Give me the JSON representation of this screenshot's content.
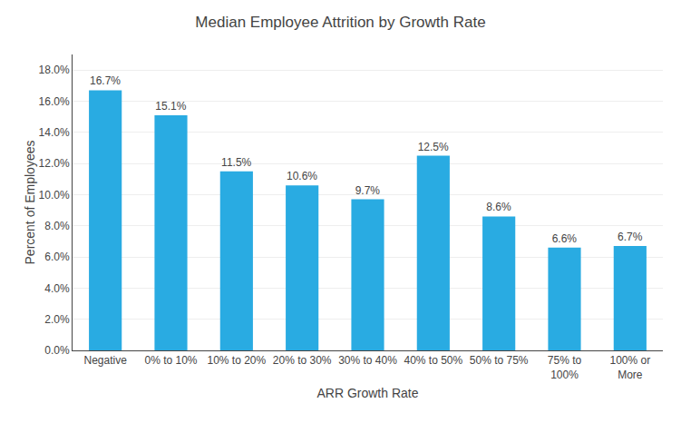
{
  "chart_data": {
    "type": "bar",
    "title": "Median Employee Attrition by Growth Rate",
    "xlabel": "ARR Growth Rate",
    "ylabel": "Percent of Employees",
    "categories": [
      "Negative",
      "0% to 10%",
      "10% to 20%",
      "20% to 30%",
      "30% to 40%",
      "40% to 50%",
      "50% to 75%",
      "75% to\n100%",
      "100% or\nMore"
    ],
    "values": [
      0.167,
      0.151,
      0.115,
      0.106,
      0.097,
      0.125,
      0.086,
      0.066,
      0.067
    ],
    "value_labels": [
      "16.7%",
      "15.1%",
      "11.5%",
      "10.6%",
      "9.7%",
      "12.5%",
      "8.6%",
      "6.6%",
      "6.7%"
    ],
    "data_labels": true,
    "color": "#29ABE2",
    "ylim": [
      0,
      0.19
    ],
    "yticks": [
      {
        "value": 0.0,
        "label": "0.0%"
      },
      {
        "value": 0.02,
        "label": "2.0%"
      },
      {
        "value": 0.04,
        "label": "4.0%"
      },
      {
        "value": 0.06,
        "label": "6.0%"
      },
      {
        "value": 0.08,
        "label": "8.0%"
      },
      {
        "value": 0.1,
        "label": "10.0%"
      },
      {
        "value": 0.12,
        "label": "12.0%"
      },
      {
        "value": 0.14,
        "label": "14.0%"
      },
      {
        "value": 0.16,
        "label": "16.0%"
      },
      {
        "value": 0.18,
        "label": "18.0%"
      }
    ],
    "grid": true
  }
}
